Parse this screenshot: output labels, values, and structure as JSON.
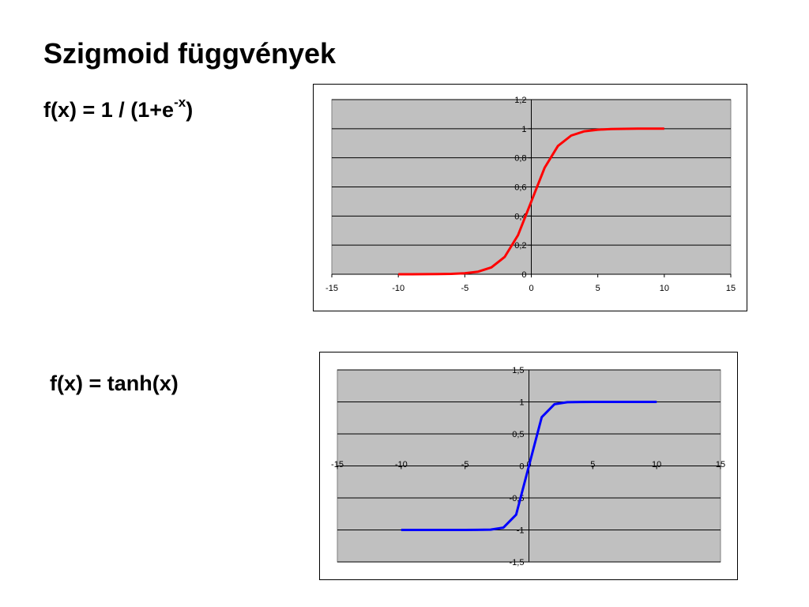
{
  "slide": {
    "title": "Szigmoid függvények",
    "formula_1": {
      "prefix": "f(x) = 1 / (1+e",
      "exponent": "-x",
      "suffix": ")"
    },
    "formula_2": "f(x) = tanh(x)"
  },
  "chart_data": [
    {
      "type": "line",
      "title": "",
      "xlabel": "",
      "ylabel": "",
      "xlim": [
        -15,
        15
      ],
      "ylim": [
        0,
        1.2
      ],
      "x_ticks": [
        -15,
        -10,
        -5,
        0,
        5,
        10,
        15
      ],
      "y_ticks": [
        0,
        0.2,
        0.4,
        0.6,
        0.8,
        1,
        1.2
      ],
      "x_tick_labels": [
        "-15",
        "-10",
        "-5",
        "0",
        "5",
        "10",
        "15"
      ],
      "y_tick_labels": [
        "0",
        "0,2",
        "0,4",
        "0,6",
        "0,8",
        "1",
        "1,2"
      ],
      "grid": "horizontal",
      "plot_background": "#c0c0c0",
      "series": [
        {
          "color": "#ff0000",
          "x": [
            -10,
            -9,
            -8,
            -7,
            -6,
            -5,
            -4,
            -3,
            -2,
            -1,
            0,
            1,
            2,
            3,
            4,
            5,
            6,
            7,
            8,
            9,
            10
          ],
          "y": [
            5e-05,
            0.0001,
            0.0003,
            0.0009,
            0.0025,
            0.0067,
            0.018,
            0.047,
            0.119,
            0.269,
            0.5,
            0.731,
            0.881,
            0.953,
            0.982,
            0.993,
            0.998,
            0.999,
            1.0,
            1.0,
            1.0
          ]
        }
      ]
    },
    {
      "type": "line",
      "title": "",
      "xlabel": "",
      "ylabel": "",
      "xlim": [
        -15,
        15
      ],
      "ylim": [
        -1.5,
        1.5
      ],
      "x_ticks": [
        -15,
        -10,
        -5,
        0,
        5,
        10,
        15
      ],
      "y_ticks": [
        -1.5,
        -1,
        -0.5,
        0,
        0.5,
        1,
        1.5
      ],
      "x_tick_labels": [
        "-15",
        "-10",
        "-5",
        "0",
        "5",
        "10",
        "15"
      ],
      "y_tick_labels": [
        "-1,5",
        "-1",
        "-0,5",
        "0",
        "0,5",
        "1",
        "1,5"
      ],
      "grid": "horizontal",
      "plot_background": "#c0c0c0",
      "series": [
        {
          "color": "#0000ff",
          "x": [
            -10,
            -9,
            -8,
            -7,
            -6,
            -5,
            -4,
            -3,
            -2,
            -1,
            0,
            1,
            2,
            3,
            4,
            5,
            6,
            7,
            8,
            9,
            10
          ],
          "y": [
            -1.0,
            -1.0,
            -1.0,
            -1.0,
            -1.0,
            -0.9999,
            -0.9993,
            -0.995,
            -0.964,
            -0.762,
            0,
            0.762,
            0.964,
            0.995,
            0.9993,
            0.9999,
            1.0,
            1.0,
            1.0,
            1.0,
            1.0
          ]
        }
      ]
    }
  ]
}
